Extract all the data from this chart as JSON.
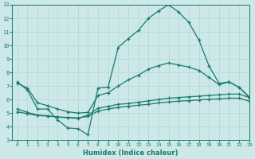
{
  "title": "",
  "xlabel": "Humidex (Indice chaleur)",
  "ylabel": "",
  "bg_color": "#cce8e8",
  "line_color": "#1a7a6e",
  "grid_color": "#b8d8d8",
  "xlim": [
    -0.5,
    23
  ],
  "ylim": [
    3,
    13
  ],
  "xticks": [
    0,
    1,
    2,
    3,
    4,
    5,
    6,
    7,
    8,
    9,
    10,
    11,
    12,
    13,
    14,
    15,
    16,
    17,
    18,
    19,
    20,
    21,
    22,
    23
  ],
  "yticks": [
    3,
    4,
    5,
    6,
    7,
    8,
    9,
    10,
    11,
    12,
    13
  ],
  "series": [
    {
      "x": [
        0,
        1,
        2,
        3,
        4,
        5,
        6,
        7,
        8,
        9,
        10,
        11,
        12,
        13,
        14,
        15,
        16,
        17,
        18,
        19,
        20,
        21,
        22,
        23
      ],
      "y": [
        7.3,
        6.7,
        5.3,
        5.3,
        4.5,
        3.9,
        3.85,
        3.4,
        6.85,
        6.9,
        9.85,
        10.5,
        11.1,
        12.0,
        12.55,
        13.0,
        12.45,
        11.7,
        10.4,
        8.5,
        7.2,
        7.3,
        6.9,
        6.2
      ]
    },
    {
      "x": [
        0,
        1,
        2,
        3,
        4,
        5,
        6,
        7,
        8,
        9,
        10,
        11,
        12,
        13,
        14,
        15,
        16,
        17,
        18,
        19,
        20,
        21,
        22,
        23
      ],
      "y": [
        7.2,
        6.85,
        5.75,
        5.55,
        5.3,
        5.1,
        5.0,
        5.05,
        6.3,
        6.5,
        7.0,
        7.45,
        7.8,
        8.25,
        8.5,
        8.7,
        8.55,
        8.4,
        8.15,
        7.65,
        7.1,
        7.3,
        6.9,
        6.15
      ]
    },
    {
      "x": [
        0,
        1,
        2,
        3,
        4,
        5,
        6,
        7,
        8,
        9,
        10,
        11,
        12,
        13,
        14,
        15,
        16,
        17,
        18,
        19,
        20,
        21,
        22,
        23
      ],
      "y": [
        5.3,
        5.05,
        4.85,
        4.8,
        4.7,
        4.65,
        4.6,
        4.85,
        5.35,
        5.5,
        5.65,
        5.7,
        5.8,
        5.9,
        6.0,
        6.1,
        6.15,
        6.2,
        6.25,
        6.3,
        6.35,
        6.4,
        6.4,
        6.15
      ]
    },
    {
      "x": [
        0,
        1,
        2,
        3,
        4,
        5,
        6,
        7,
        8,
        9,
        10,
        11,
        12,
        13,
        14,
        15,
        16,
        17,
        18,
        19,
        20,
        21,
        22,
        23
      ],
      "y": [
        5.1,
        4.95,
        4.82,
        4.78,
        4.72,
        4.68,
        4.65,
        4.75,
        5.15,
        5.3,
        5.42,
        5.5,
        5.58,
        5.65,
        5.75,
        5.82,
        5.88,
        5.92,
        5.97,
        6.02,
        6.05,
        6.1,
        6.1,
        5.88
      ]
    }
  ]
}
